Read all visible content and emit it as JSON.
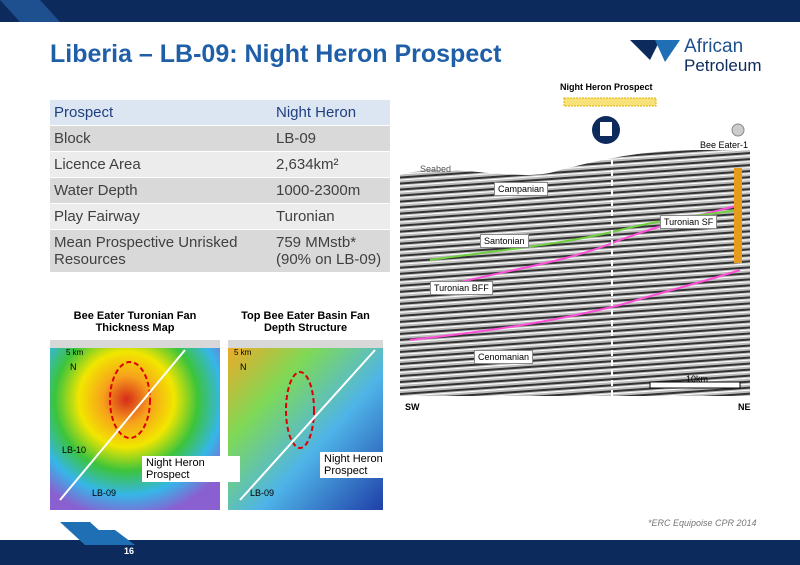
{
  "header": {
    "title": "Liberia – LB-09: Night Heron Prospect"
  },
  "logo": {
    "line1": "African",
    "line2": "Petroleum"
  },
  "table": {
    "rows": [
      [
        "Prospect",
        "Night Heron"
      ],
      [
        "Block",
        "LB-09"
      ],
      [
        "Licence Area",
        "2,634km²"
      ],
      [
        "Water Depth",
        "1000-2300m"
      ],
      [
        "Play Fairway",
        "Turonian"
      ],
      [
        "Mean Prospective Unrisked Resources",
        "759 MMstb* (90% on LB-09)"
      ]
    ]
  },
  "maps": [
    {
      "title": "Bee Eater Turonian Fan Thickness Map",
      "scale": "5 km",
      "north": "N",
      "block_a": "LB-10",
      "block_b": "LB-09",
      "prospect": "Night Heron Prospect"
    },
    {
      "title": "Top Bee Eater Basin Fan Depth Structure",
      "scale": "5 km",
      "north": "N",
      "block_b": "LB-09",
      "prospect": "Night Heron Prospect"
    }
  ],
  "seismic": {
    "prospect": "Night Heron Prospect",
    "well": "Bee Eater-1",
    "seabed": "Seabed",
    "horizons": [
      "Campanian",
      "Santonian",
      "Turonian SF",
      "Turonian BFF",
      "Cenomanian"
    ],
    "scale": "10km",
    "left": "SW",
    "right": "NE"
  },
  "footnote": "*ERC Equipoise CPR 2014",
  "page_number": "16"
}
